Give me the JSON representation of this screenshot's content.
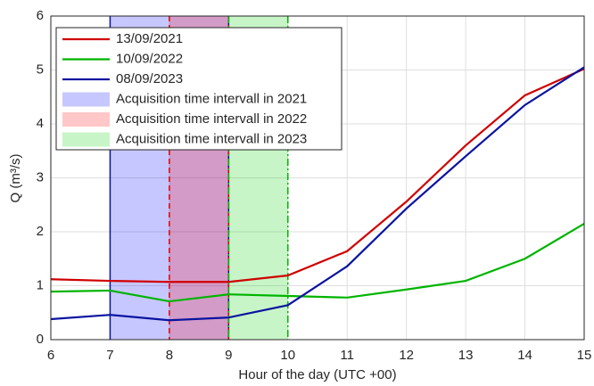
{
  "chart_data": {
    "type": "line",
    "xlabel": "Hour of the day (UTC +00)",
    "ylabel": "Q (m³/s)",
    "x": [
      6,
      7,
      8,
      9,
      10,
      11,
      12,
      13,
      14,
      15
    ],
    "series": [
      {
        "name": "13/09/2021",
        "color": "#d00000",
        "values": [
          1.12,
          1.09,
          1.07,
          1.07,
          1.19,
          1.64,
          2.56,
          3.6,
          4.53,
          5.02
        ]
      },
      {
        "name": "10/09/2022",
        "color": "#00b400",
        "values": [
          0.89,
          0.91,
          0.71,
          0.84,
          0.81,
          0.78,
          0.93,
          1.09,
          1.5,
          2.15
        ]
      },
      {
        "name": "08/09/2023",
        "color": "#0a14a0",
        "values": [
          0.38,
          0.46,
          0.36,
          0.41,
          0.64,
          1.36,
          2.43,
          3.4,
          4.35,
          5.05
        ]
      }
    ],
    "intervals": [
      {
        "name": "Acquisition time intervall in 2021",
        "color": "#0000ff",
        "edge_color": "#0a14a0",
        "linestyle": "solid",
        "x": [
          7,
          9
        ]
      },
      {
        "name": "Acquisition time intervall in 2022",
        "color": "#ff0000",
        "edge_color": "#e00000",
        "linestyle": "dashed",
        "x": [
          8,
          9
        ]
      },
      {
        "name": "Acquisition time intervall in 2023",
        "color": "#00d000",
        "edge_color": "#00b400",
        "linestyle": "dashdot",
        "x": [
          9,
          10
        ]
      }
    ],
    "xlim": [
      6,
      15
    ],
    "xticks": [
      6,
      7,
      8,
      9,
      10,
      11,
      12,
      13,
      14,
      15
    ],
    "ylim": [
      0,
      6
    ],
    "yticks": [
      0,
      1,
      2,
      3,
      4,
      5,
      6
    ],
    "grid": true,
    "legend": "upper-left"
  }
}
